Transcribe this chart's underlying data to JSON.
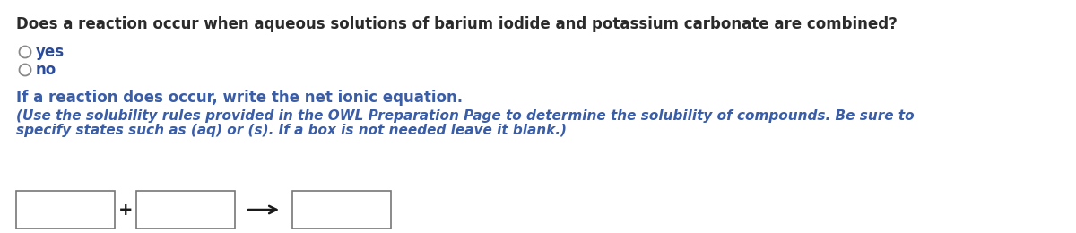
{
  "background_color": "#ffffff",
  "question_text": "Does a reaction occur when aqueous solutions of barium iodide and potassium carbonate are combined?",
  "option_yes": "yes",
  "option_no": "no",
  "reaction_label": "If a reaction does occur, write the net ionic equation.",
  "note_line1": "(Use the solubility rules provided in the OWL Preparation Page to determine the solubility of compounds. Be sure to",
  "note_line2": "specify states such as (aq) or (s). If a box is not needed leave it blank.)",
  "question_fontsize": 12,
  "option_fontsize": 12,
  "reaction_label_fontsize": 12,
  "note_fontsize": 11,
  "text_color_black": "#2b2b2b",
  "text_color_blue": "#3a5da8",
  "text_color_option": "#2a4a9a"
}
